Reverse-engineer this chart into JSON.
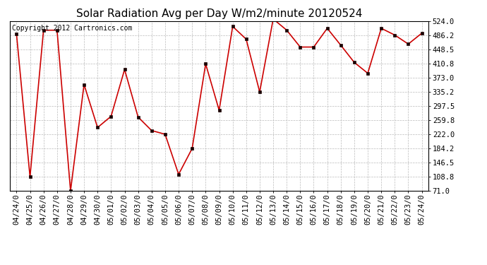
{
  "title": "Solar Radiation Avg per Day W/m2/minute 20120524",
  "copyright_text": "Copyright 2012 Cartronics.com",
  "dates": [
    "04/24",
    "04/25",
    "04/26",
    "04/27",
    "04/28",
    "04/29",
    "04/30",
    "05/01",
    "05/02",
    "05/03",
    "05/04",
    "05/05",
    "05/06",
    "05/07",
    "05/08",
    "05/09",
    "05/10",
    "05/11",
    "05/12",
    "05/13",
    "05/14",
    "05/15",
    "05/16",
    "05/17",
    "05/18",
    "05/19",
    "05/20",
    "05/21",
    "05/22",
    "05/23",
    "05/24"
  ],
  "values": [
    490,
    108,
    500,
    500,
    71,
    355,
    240,
    270,
    395,
    268,
    232,
    222,
    115,
    184,
    410,
    286,
    510,
    476,
    335,
    530,
    500,
    455,
    455,
    505,
    460,
    414,
    385,
    505,
    487,
    463,
    492
  ],
  "line_color": "#cc0000",
  "marker_color": "#1a0000",
  "bg_color": "#ffffff",
  "plot_bg_color": "#ffffff",
  "grid_color": "#bbbbbb",
  "yticks": [
    71.0,
    108.8,
    146.5,
    184.2,
    222.0,
    259.8,
    297.5,
    335.2,
    373.0,
    410.8,
    448.5,
    486.2,
    524.0
  ],
  "ymin": 71.0,
  "ymax": 524.0,
  "title_fontsize": 11,
  "copyright_fontsize": 7,
  "tick_fontsize": 7.5,
  "figsize": [
    6.9,
    3.75
  ],
  "dpi": 100
}
